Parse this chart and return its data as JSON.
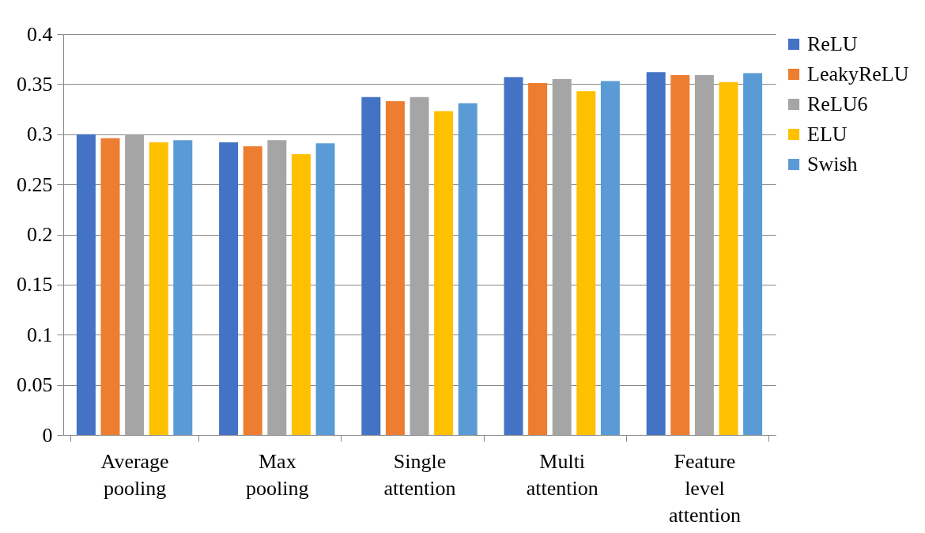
{
  "chart_data": {
    "type": "bar",
    "categories": [
      "Average pooling",
      "Max pooling",
      "Single attention",
      "Multi attention",
      "Feature level attention"
    ],
    "series": [
      {
        "name": "ReLU",
        "color": "#4472c4",
        "values": [
          0.3,
          0.292,
          0.337,
          0.357,
          0.362
        ]
      },
      {
        "name": "LeakyReLU",
        "color": "#ed7d31",
        "values": [
          0.296,
          0.288,
          0.333,
          0.351,
          0.359
        ]
      },
      {
        "name": "ReLU6",
        "color": "#a5a5a5",
        "values": [
          0.3,
          0.294,
          0.337,
          0.355,
          0.359
        ]
      },
      {
        "name": "ELU",
        "color": "#ffc000",
        "values": [
          0.292,
          0.28,
          0.323,
          0.343,
          0.352
        ]
      },
      {
        "name": "Swish",
        "color": "#5b9bd5",
        "values": [
          0.294,
          0.291,
          0.331,
          0.353,
          0.361
        ]
      }
    ],
    "ylim": [
      0,
      0.4
    ],
    "yticks": [
      0,
      0.05,
      0.1,
      0.15,
      0.2,
      0.25,
      0.3,
      0.35,
      0.4
    ],
    "grid": "y",
    "legend": "right"
  }
}
